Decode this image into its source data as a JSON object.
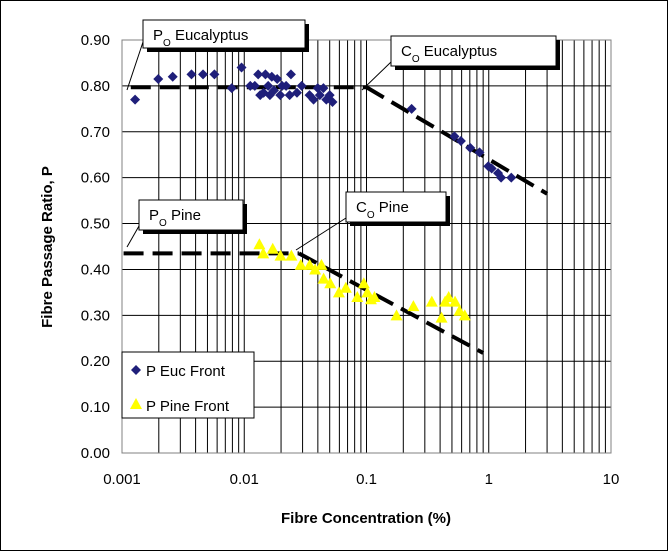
{
  "chart_data": {
    "type": "scatter",
    "xscale": "log",
    "xlim": [
      0.001,
      10
    ],
    "ylim": [
      0.0,
      0.9
    ],
    "xlabel": "Fibre Concentration (%)",
    "ylabel": "Fibre Passage Ratio, P",
    "x_tick_labels": [
      "0.001",
      "0.01",
      "0.1",
      "1",
      "10"
    ],
    "y_tick_labels": [
      "0.00",
      "0.10",
      "0.20",
      "0.30",
      "0.40",
      "0.50",
      "0.60",
      "0.70",
      "0.80",
      "0.90"
    ],
    "grid": true,
    "legend_position": "bottom-left",
    "series": [
      {
        "name": "P Euc Front",
        "marker": "diamond",
        "color": "#1F1F7A",
        "points": [
          [
            0.00128,
            0.77
          ],
          [
            0.00198,
            0.815
          ],
          [
            0.0026,
            0.82
          ],
          [
            0.0037,
            0.825
          ],
          [
            0.0046,
            0.825
          ],
          [
            0.0057,
            0.825
          ],
          [
            0.0079,
            0.795
          ],
          [
            0.0095,
            0.84
          ],
          [
            0.0112,
            0.8
          ],
          [
            0.0122,
            0.8
          ],
          [
            0.013,
            0.825
          ],
          [
            0.0135,
            0.78
          ],
          [
            0.0144,
            0.785
          ],
          [
            0.0149,
            0.825
          ],
          [
            0.0157,
            0.8
          ],
          [
            0.0162,
            0.78
          ],
          [
            0.0168,
            0.82
          ],
          [
            0.0175,
            0.79
          ],
          [
            0.0186,
            0.815
          ],
          [
            0.0197,
            0.78
          ],
          [
            0.0204,
            0.8
          ],
          [
            0.022,
            0.8
          ],
          [
            0.0235,
            0.78
          ],
          [
            0.0241,
            0.825
          ],
          [
            0.027,
            0.785
          ],
          [
            0.0295,
            0.8
          ],
          [
            0.0342,
            0.78
          ],
          [
            0.0369,
            0.77
          ],
          [
            0.0399,
            0.795
          ],
          [
            0.0415,
            0.78
          ],
          [
            0.0444,
            0.795
          ],
          [
            0.0469,
            0.77
          ],
          [
            0.05,
            0.78
          ],
          [
            0.0527,
            0.765
          ],
          [
            0.234,
            0.75
          ],
          [
            0.524,
            0.69
          ],
          [
            0.592,
            0.68
          ],
          [
            0.706,
            0.665
          ],
          [
            0.84,
            0.655
          ],
          [
            0.991,
            0.625
          ],
          [
            1.057,
            0.62
          ],
          [
            1.191,
            0.61
          ],
          [
            1.262,
            0.6
          ],
          [
            1.529,
            0.6
          ]
        ]
      },
      {
        "name": "P Pine Front",
        "marker": "triangle",
        "color": "#FFFF00",
        "points": [
          [
            0.0133,
            0.455
          ],
          [
            0.0143,
            0.435
          ],
          [
            0.0171,
            0.445
          ],
          [
            0.0198,
            0.43
          ],
          [
            0.0243,
            0.43
          ],
          [
            0.029,
            0.41
          ],
          [
            0.0343,
            0.41
          ],
          [
            0.038,
            0.4
          ],
          [
            0.0428,
            0.41
          ],
          [
            0.0446,
            0.38
          ],
          [
            0.0505,
            0.37
          ],
          [
            0.0595,
            0.35
          ],
          [
            0.0678,
            0.36
          ],
          [
            0.0841,
            0.34
          ],
          [
            0.0951,
            0.37
          ],
          [
            0.1016,
            0.35
          ],
          [
            0.1087,
            0.335
          ],
          [
            0.1162,
            0.34
          ],
          [
            0.176,
            0.3
          ],
          [
            0.2419,
            0.32
          ],
          [
            0.3422,
            0.33
          ],
          [
            0.4109,
            0.295
          ],
          [
            0.4395,
            0.33
          ],
          [
            0.4702,
            0.34
          ],
          [
            0.5302,
            0.33
          ],
          [
            0.5764,
            0.31
          ],
          [
            0.6366,
            0.3
          ]
        ]
      }
    ],
    "reference_lines": [
      {
        "name": "PO Eucalyptus",
        "style": "dashed",
        "points": [
          [
            0.00118,
            0.797
          ],
          [
            0.1,
            0.797
          ]
        ]
      },
      {
        "name": "CO Eucalyptus slope",
        "style": "dashed",
        "points": [
          [
            0.1,
            0.797
          ],
          [
            3.0,
            0.565
          ]
        ]
      },
      {
        "name": "PO Pine",
        "style": "dashed",
        "points": [
          [
            0.00103,
            0.435
          ],
          [
            0.028,
            0.435
          ]
        ]
      },
      {
        "name": "CO Pine slope",
        "style": "dashed",
        "points": [
          [
            0.028,
            0.435
          ],
          [
            0.9,
            0.218
          ]
        ]
      }
    ],
    "annotations": [
      {
        "main": "P",
        "sub": "O",
        "rest": " Eucalyptus"
      },
      {
        "main": "C",
        "sub": "O",
        "rest": " Eucalyptus"
      },
      {
        "main": "P",
        "sub": "O",
        "rest": " Pine"
      },
      {
        "main": "C",
        "sub": "O",
        "rest": " Pine"
      }
    ]
  }
}
